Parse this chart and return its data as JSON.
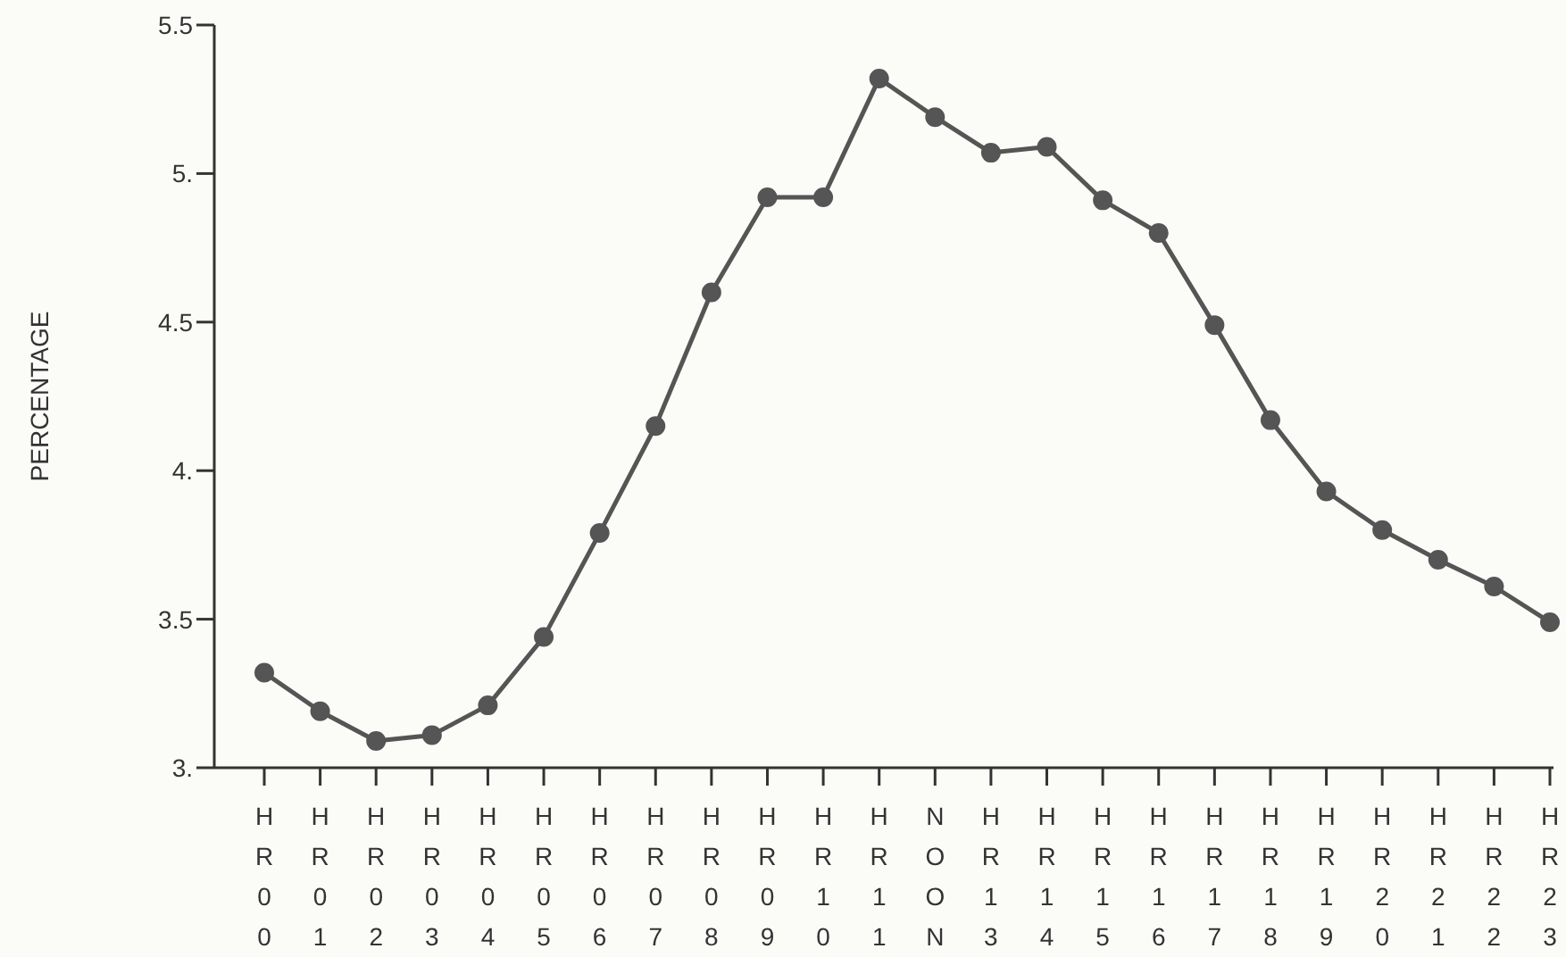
{
  "chart_data": {
    "type": "line",
    "ylabel": "PERCENTAGE",
    "categories": [
      "HR00",
      "HR01",
      "HR02",
      "HR03",
      "HR04",
      "HR05",
      "HR06",
      "HR07",
      "HR08",
      "HR09",
      "HR10",
      "HR11",
      "NOON",
      "HR13",
      "HR14",
      "HR15",
      "HR16",
      "HR17",
      "HR18",
      "HR19",
      "HR20",
      "HR21",
      "HR22",
      "HR23"
    ],
    "series": [
      {
        "color": "#555555",
        "values": [
          3.32,
          3.19,
          3.09,
          3.11,
          3.21,
          3.44,
          3.79,
          4.15,
          4.6,
          4.92,
          4.92,
          5.32,
          5.19,
          5.07,
          5.09,
          4.91,
          4.8,
          4.49,
          4.17,
          3.93,
          3.8,
          3.7,
          3.61,
          3.49
        ]
      }
    ],
    "ylim": [
      3,
      5.5
    ],
    "yticks": [
      {
        "value": 3,
        "label": "3."
      },
      {
        "value": 3.5,
        "label": "3.5"
      },
      {
        "value": 4,
        "label": "4."
      },
      {
        "value": 4.5,
        "label": "4.5"
      },
      {
        "value": 5,
        "label": "5."
      },
      {
        "value": 5.5,
        "label": "5.5"
      }
    ],
    "grid": false,
    "legend": false,
    "marker": "circle",
    "line_style": "solid"
  }
}
